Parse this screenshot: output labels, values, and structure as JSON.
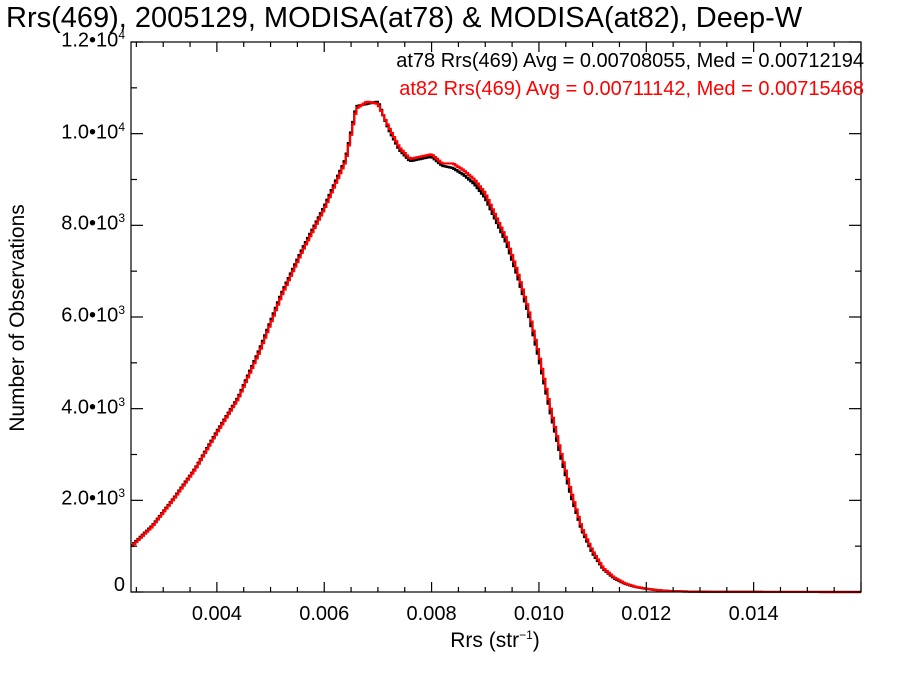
{
  "chart_data": {
    "type": "line",
    "title": "Rrs(469), 2005129, MODISA(at78) & MODISA(at82), Deep-W",
    "xlabel": "Rrs (str",
    "xlabel_sup": "−1",
    "xlabel_close": ")",
    "ylabel": "Number of Observations",
    "xlim": [
      0.0024,
      0.016
    ],
    "ylim": [
      0,
      12000
    ],
    "x_ticks": [
      {
        "value": 0.004,
        "label": "0.004"
      },
      {
        "value": 0.006,
        "label": "0.006"
      },
      {
        "value": 0.008,
        "label": "0.008"
      },
      {
        "value": 0.01,
        "label": "0.010"
      },
      {
        "value": 0.012,
        "label": "0.012"
      },
      {
        "value": 0.014,
        "label": "0.014"
      }
    ],
    "y_ticks": [
      {
        "value": 0,
        "mant": "0",
        "exp": ""
      },
      {
        "value": 2000,
        "mant": "2.0•10",
        "exp": "3"
      },
      {
        "value": 4000,
        "mant": "4.0•10",
        "exp": "3"
      },
      {
        "value": 6000,
        "mant": "6.0•10",
        "exp": "3"
      },
      {
        "value": 8000,
        "mant": "8.0•10",
        "exp": "3"
      },
      {
        "value": 10000,
        "mant": "1.0•10",
        "exp": "4"
      },
      {
        "value": 12000,
        "mant": "1.2•10",
        "exp": "4"
      }
    ],
    "legend_placement": "top-right",
    "series": [
      {
        "name": "at78 Rrs(469) Avg = 0.00708055, Med = 0.00712194",
        "color": "#000000",
        "x": [
          0.0024,
          0.0028,
          0.0032,
          0.0036,
          0.004,
          0.0044,
          0.0048,
          0.0052,
          0.0056,
          0.006,
          0.0064,
          0.0066,
          0.0068,
          0.007,
          0.0072,
          0.0074,
          0.0076,
          0.0078,
          0.008,
          0.0082,
          0.0084,
          0.0086,
          0.0088,
          0.009,
          0.0092,
          0.0094,
          0.0096,
          0.0098,
          0.01,
          0.0102,
          0.0104,
          0.0106,
          0.0108,
          0.011,
          0.0112,
          0.0114,
          0.0116,
          0.0118,
          0.012,
          0.0122,
          0.0124,
          0.0126,
          0.0128,
          0.013,
          0.0134,
          0.014,
          0.015,
          0.016
        ],
        "y": [
          1000,
          1450,
          2050,
          2700,
          3500,
          4250,
          5300,
          6500,
          7500,
          8400,
          9450,
          10600,
          10650,
          10700,
          10100,
          9650,
          9400,
          9450,
          9500,
          9300,
          9250,
          9100,
          8900,
          8600,
          8100,
          7600,
          6900,
          6100,
          5100,
          4000,
          3000,
          2100,
          1350,
          850,
          500,
          300,
          180,
          110,
          70,
          40,
          22,
          14,
          9,
          6,
          3,
          2,
          1,
          0
        ]
      },
      {
        "name": "at82 Rrs(469) Avg = 0.00711142, Med = 0.00715468",
        "color": "#ff0000",
        "x": [
          0.0024,
          0.0028,
          0.0032,
          0.0036,
          0.004,
          0.0044,
          0.0048,
          0.0052,
          0.0056,
          0.006,
          0.0064,
          0.0066,
          0.0068,
          0.007,
          0.0072,
          0.0074,
          0.0076,
          0.0078,
          0.008,
          0.0082,
          0.0084,
          0.0086,
          0.0088,
          0.009,
          0.0092,
          0.0094,
          0.0096,
          0.0098,
          0.01,
          0.0102,
          0.0104,
          0.0106,
          0.0108,
          0.011,
          0.0112,
          0.0114,
          0.0116,
          0.0118,
          0.012,
          0.0122,
          0.0124,
          0.0126,
          0.0128,
          0.013,
          0.0134,
          0.014,
          0.015,
          0.016
        ],
        "y": [
          980,
          1430,
          2030,
          2680,
          3470,
          4220,
          5250,
          6450,
          7450,
          8350,
          9400,
          10550,
          10700,
          10650,
          10150,
          9700,
          9450,
          9500,
          9550,
          9350,
          9350,
          9200,
          9000,
          8700,
          8200,
          7700,
          7000,
          6200,
          5200,
          4100,
          3100,
          2200,
          1400,
          900,
          520,
          320,
          190,
          115,
          72,
          42,
          23,
          15,
          9,
          6,
          3,
          2,
          1,
          0
        ]
      }
    ]
  }
}
